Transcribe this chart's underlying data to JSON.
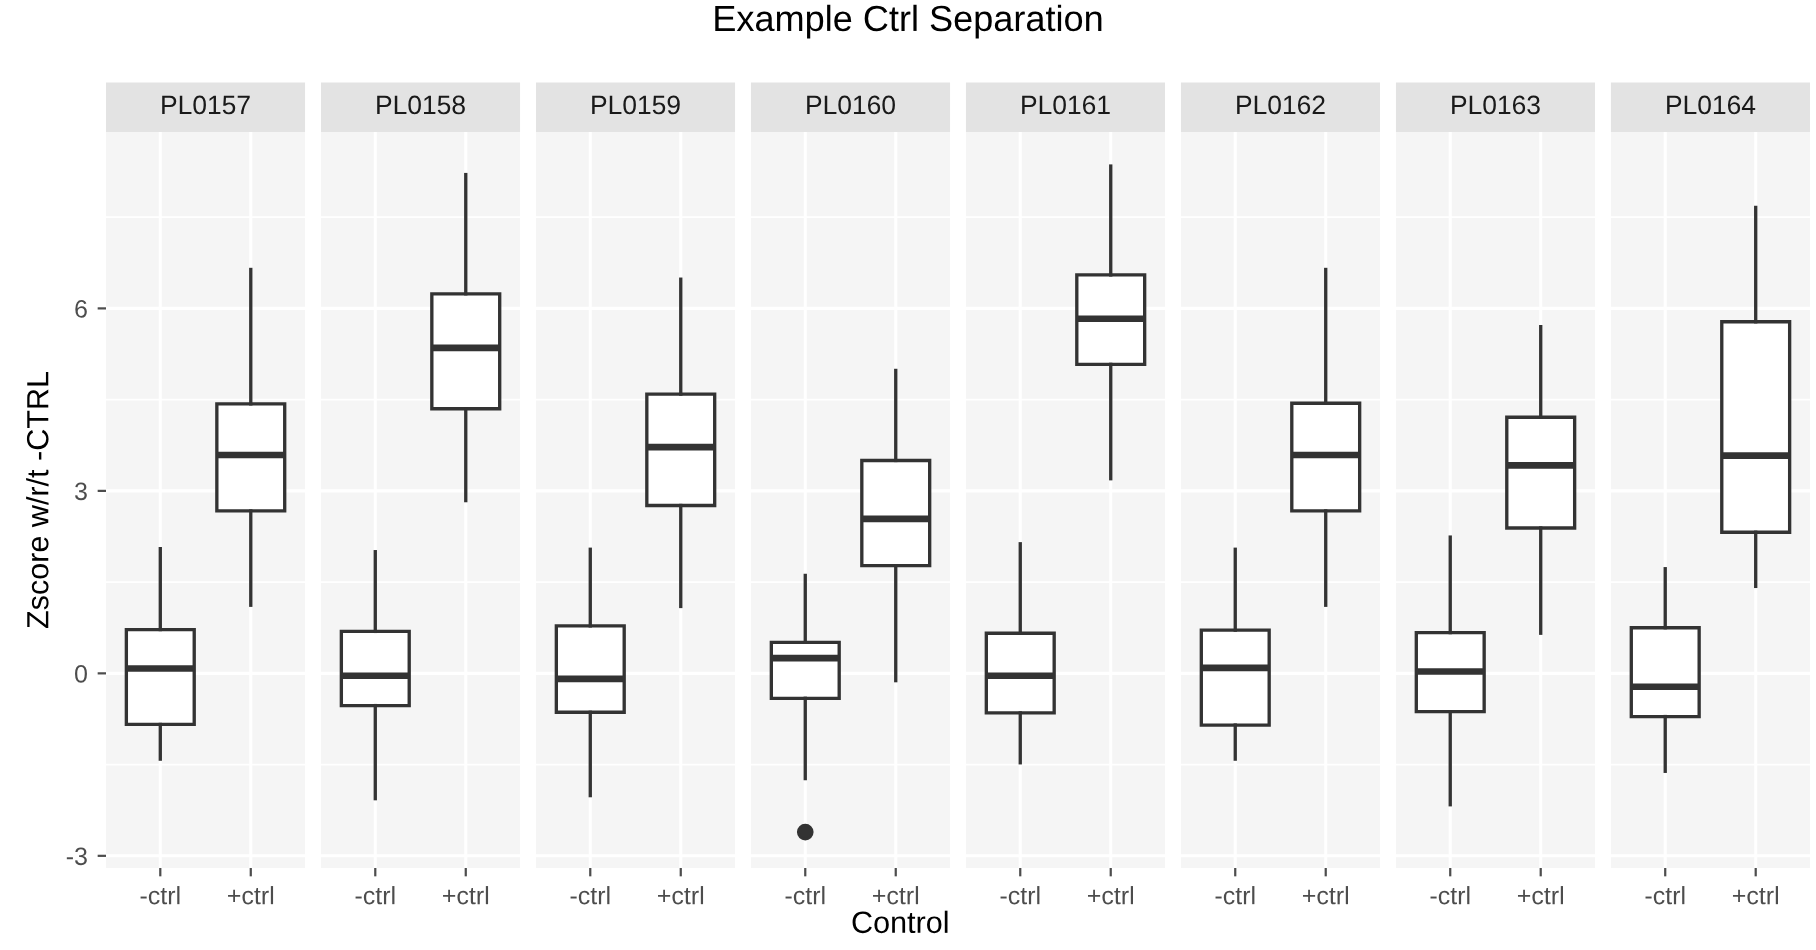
{
  "chart_data": [
    {
      "type": "box",
      "title": "PL0157",
      "annotations": [
        "Example Ctrl Separation"
      ],
      "ylabel": "Zscore w/r/t -CTRL",
      "categories": [
        "-ctrl",
        "+ctrl"
      ],
      "ylim": [
        -3.2,
        8.9
      ],
      "yticks": [
        -3,
        0,
        3,
        6
      ],
      "grid": true,
      "color": "#333333",
      "boxes": [
        {
          "low": -1.41,
          "q1": -0.84,
          "median": 0.08,
          "q3": 0.72,
          "high": 2.05
        },
        {
          "low": 1.12,
          "q1": 2.67,
          "median": 3.59,
          "q3": 4.43,
          "high": 6.64
        }
      ]
    },
    {
      "type": "box",
      "title": "PL0158",
      "categories": [
        "-ctrl",
        "+ctrl"
      ],
      "ylim": [
        -3.2,
        8.9
      ],
      "yticks": [
        -3,
        0,
        3,
        6
      ],
      "grid": true,
      "tick_labels": "x",
      "color": "#333333",
      "boxes": [
        {
          "low": -2.06,
          "q1": -0.53,
          "median": -0.04,
          "q3": 0.69,
          "high": 2.0
        },
        {
          "low": 2.84,
          "q1": 4.35,
          "median": 5.35,
          "q3": 6.24,
          "high": 8.2
        }
      ]
    },
    {
      "type": "box",
      "title": "PL0159",
      "categories": [
        "-ctrl",
        "+ctrl"
      ],
      "ylim": [
        -3.2,
        8.9
      ],
      "yticks": [
        -3,
        0,
        3,
        6
      ],
      "grid": true,
      "tick_labels": "x",
      "color": "#333333",
      "boxes": [
        {
          "low": -2.01,
          "q1": -0.64,
          "median": -0.09,
          "q3": 0.78,
          "high": 2.04
        },
        {
          "low": 1.1,
          "q1": 2.76,
          "median": 3.72,
          "q3": 4.59,
          "high": 6.48
        }
      ]
    },
    {
      "type": "box",
      "title": "PL0160",
      "xlabel": "Control",
      "categories": [
        "-ctrl",
        "+ctrl"
      ],
      "ylim": [
        -3.2,
        8.9
      ],
      "yticks": [
        -3,
        0,
        3,
        6
      ],
      "grid": true,
      "tick_labels": "x",
      "color": "#333333",
      "boxes": [
        {
          "low": -1.73,
          "q1": -0.41,
          "median": 0.25,
          "q3": 0.51,
          "high": 1.61,
          "outliers": [
            -2.61
          ]
        },
        {
          "low": -0.12,
          "q1": 1.77,
          "median": 2.54,
          "q3": 3.5,
          "high": 4.98
        }
      ]
    },
    {
      "type": "box",
      "title": "PL0161",
      "categories": [
        "-ctrl",
        "+ctrl"
      ],
      "ylim": [
        -3.2,
        8.9
      ],
      "yticks": [
        -3,
        0,
        3,
        6
      ],
      "grid": true,
      "tick_labels": "x",
      "color": "#333333",
      "boxes": [
        {
          "low": -1.47,
          "q1": -0.65,
          "median": -0.04,
          "q3": 0.66,
          "high": 2.13
        },
        {
          "low": 3.2,
          "q1": 5.08,
          "median": 5.83,
          "q3": 6.55,
          "high": 8.34
        }
      ]
    },
    {
      "type": "box",
      "title": "PL0162",
      "categories": [
        "-ctrl",
        "+ctrl"
      ],
      "ylim": [
        -3.2,
        8.9
      ],
      "yticks": [
        -3,
        0,
        3,
        6
      ],
      "grid": true,
      "tick_labels": "x",
      "color": "#333333",
      "boxes": [
        {
          "low": -1.41,
          "q1": -0.85,
          "median": 0.09,
          "q3": 0.71,
          "high": 2.04
        },
        {
          "low": 1.12,
          "q1": 2.67,
          "median": 3.59,
          "q3": 4.44,
          "high": 6.64
        }
      ]
    },
    {
      "type": "box",
      "title": "PL0163",
      "categories": [
        "-ctrl",
        "+ctrl"
      ],
      "ylim": [
        -3.2,
        8.9
      ],
      "yticks": [
        -3,
        0,
        3,
        6
      ],
      "grid": true,
      "tick_labels": "x",
      "color": "#333333",
      "boxes": [
        {
          "low": -2.16,
          "q1": -0.63,
          "median": 0.03,
          "q3": 0.67,
          "high": 2.24
        },
        {
          "low": 0.66,
          "q1": 2.39,
          "median": 3.42,
          "q3": 4.21,
          "high": 5.7
        }
      ]
    },
    {
      "type": "box",
      "title": "PL0164",
      "categories": [
        "-ctrl",
        "+ctrl"
      ],
      "ylim": [
        -3.2,
        8.9
      ],
      "yticks": [
        -3,
        0,
        3,
        6
      ],
      "grid": true,
      "tick_labels": "x",
      "color": "#333333",
      "boxes": [
        {
          "low": -1.61,
          "q1": -0.71,
          "median": -0.22,
          "q3": 0.75,
          "high": 1.72
        },
        {
          "low": 1.43,
          "q1": 2.32,
          "median": 3.58,
          "q3": 5.78,
          "high": 7.66
        }
      ]
    }
  ]
}
